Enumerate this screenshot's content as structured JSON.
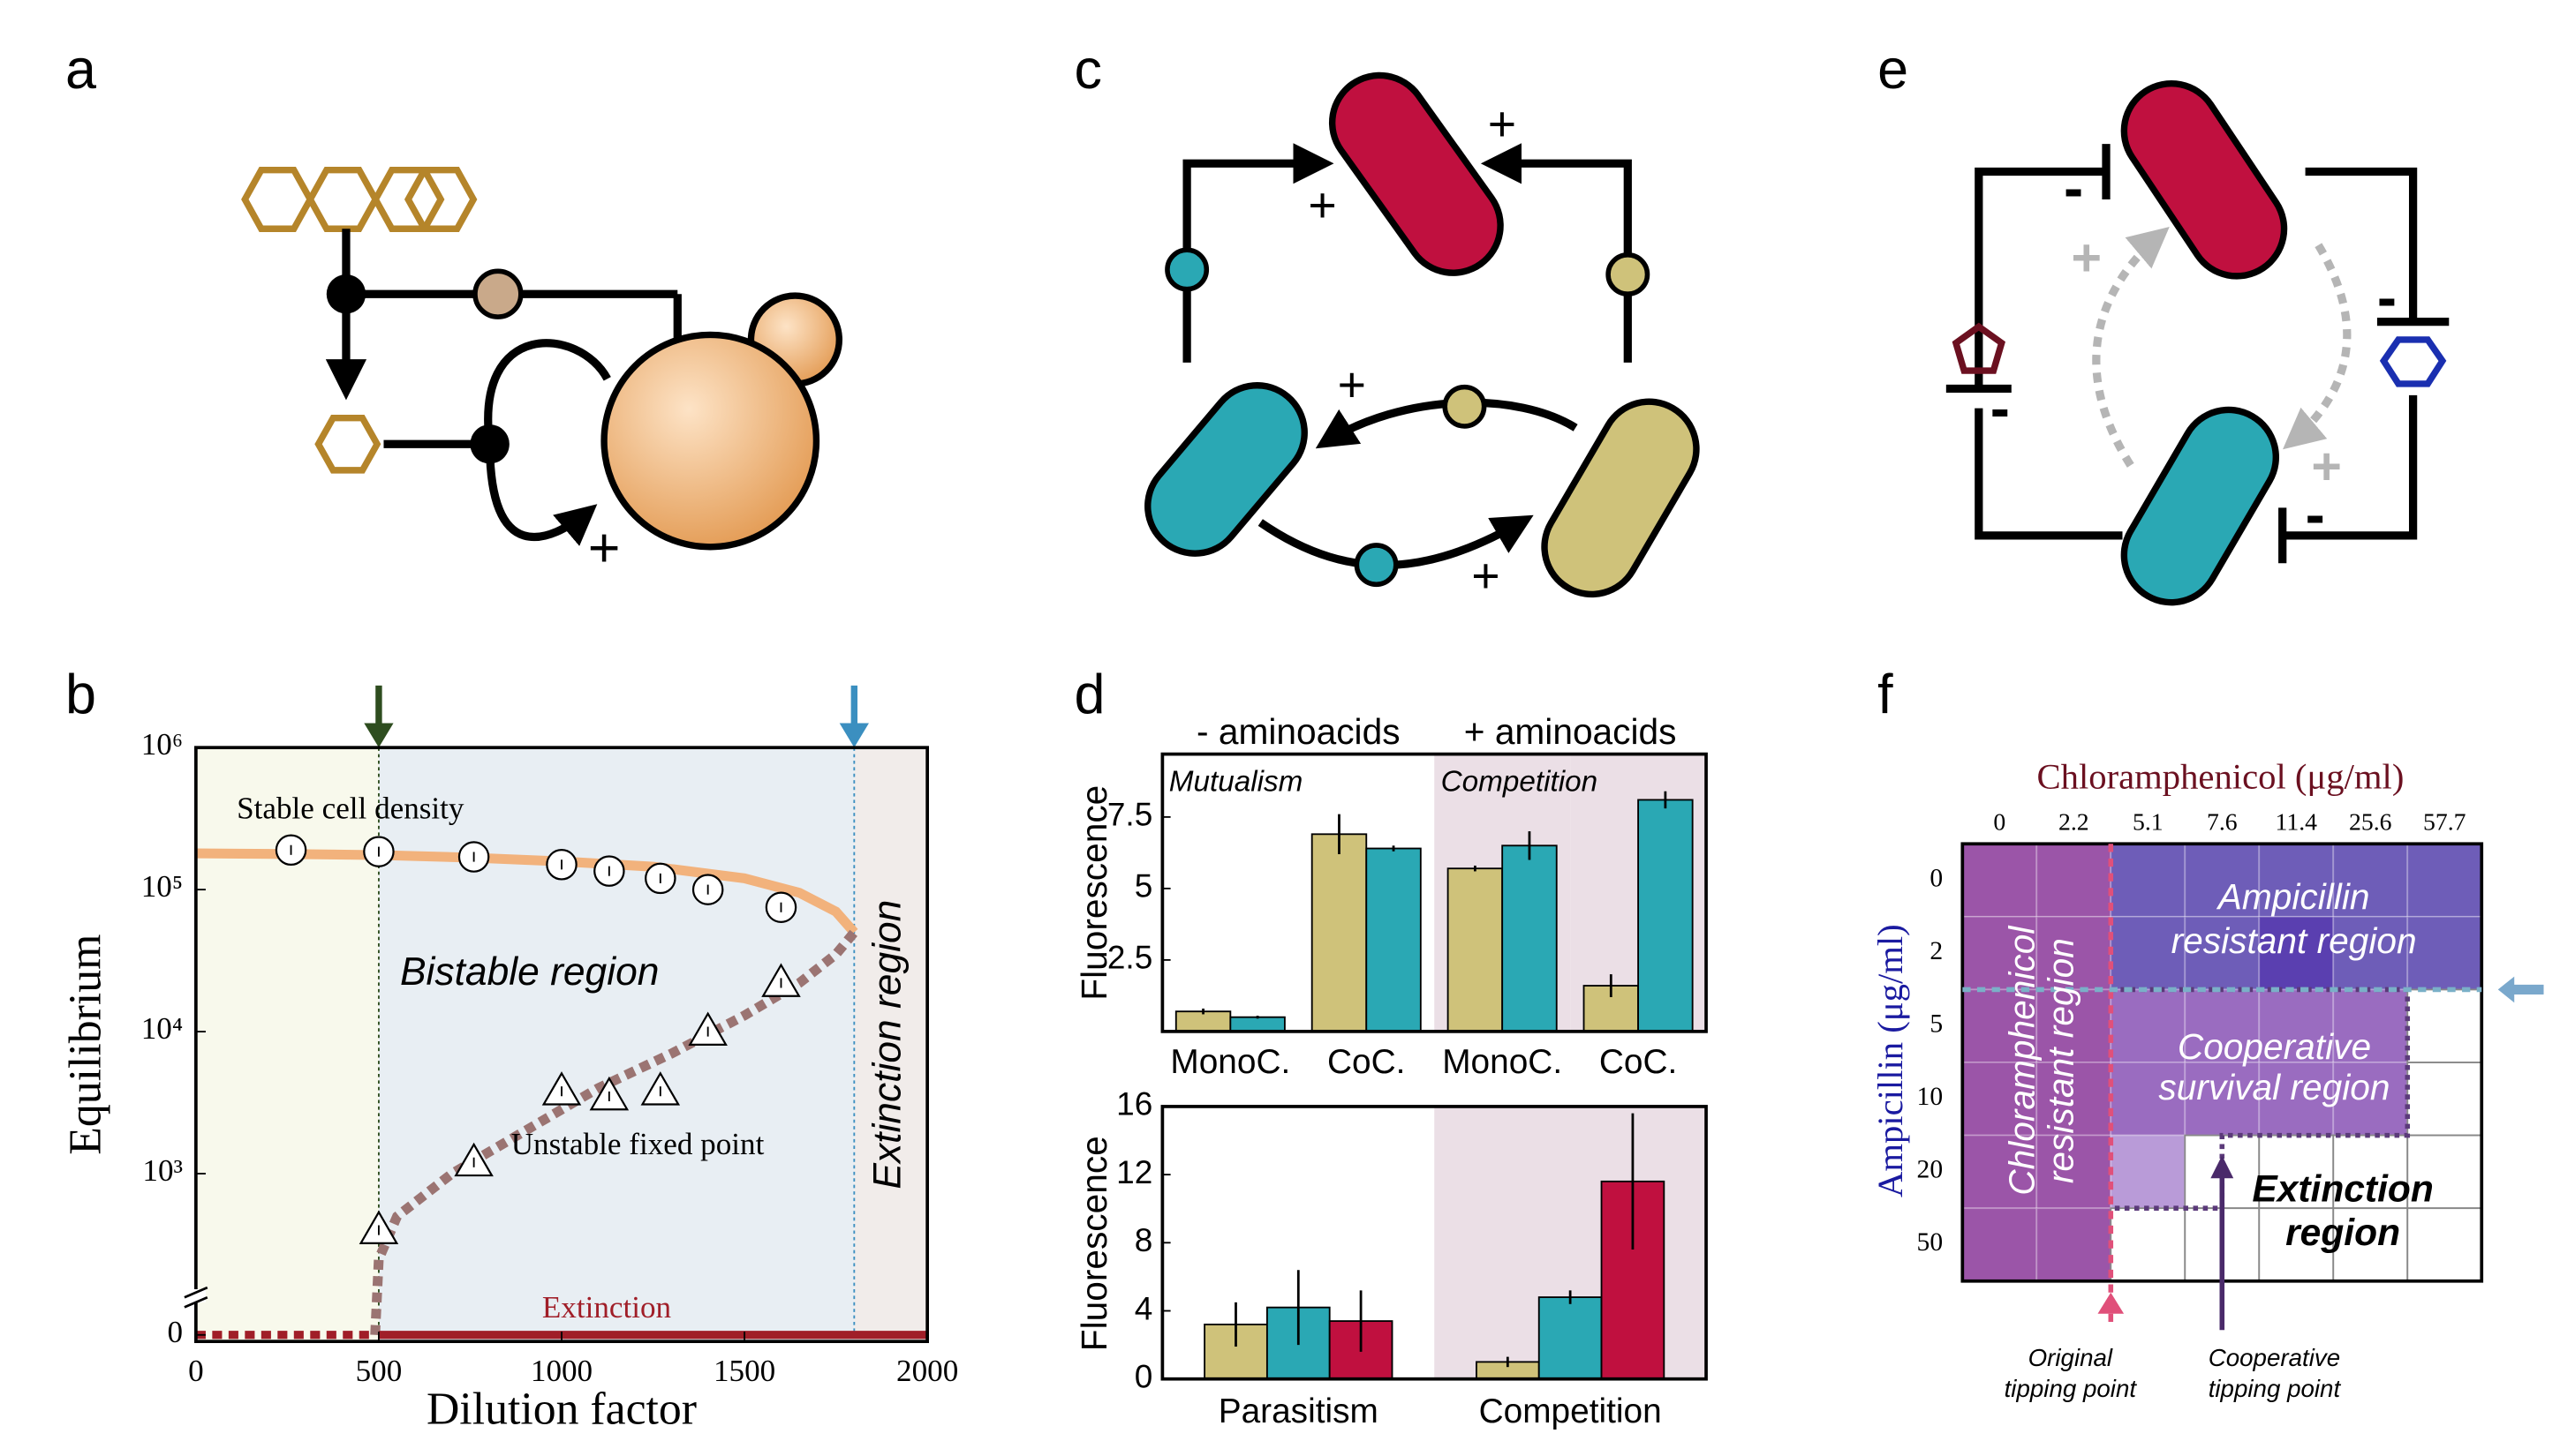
{
  "panel_labels": [
    "a",
    "b",
    "c",
    "d",
    "e",
    "f"
  ],
  "diagram_a": {
    "signs": [
      "+"
    ]
  },
  "diagram_c": {
    "signs": [
      "+",
      "+",
      "+",
      "+"
    ]
  },
  "diagram_e": {
    "signs": [
      "-",
      "-",
      "-",
      "-",
      "+",
      "+"
    ]
  },
  "chart_data": [
    {
      "type": "line",
      "xlabel": "Dilution factor",
      "ylabel": "Equilibrium",
      "xlim": [
        0,
        2000
      ],
      "xticks": [
        0,
        500,
        1000,
        1500,
        2000
      ],
      "ylim": [
        200,
        1000000
      ],
      "log_y": true,
      "axis_break": true,
      "yticks": [
        {
          "value": 0,
          "label": "0"
        },
        {
          "value": 1000,
          "label": "10³"
        },
        {
          "value": 10000,
          "label": "10⁴"
        },
        {
          "value": 100000,
          "label": "10⁵"
        },
        {
          "value": 1000000,
          "label": "10⁶"
        }
      ],
      "regions": [
        {
          "x": [
            0,
            500
          ],
          "color": "#f8f9ec"
        },
        {
          "x": [
            500,
            1800
          ],
          "color": "#e8eef3"
        },
        {
          "x": [
            1800,
            2000
          ],
          "color": "#f1ecea"
        }
      ],
      "markers": [
        {
          "x": 500,
          "color": "#2e4d1f"
        },
        {
          "x": 1800,
          "color": "#3b8fc0"
        }
      ],
      "series": [
        {
          "style": "solid",
          "color": "#f2b27c",
          "x": [
            0,
            250,
            500,
            750,
            1000,
            1250,
            1500,
            1650,
            1750,
            1800
          ],
          "values": [
            180000,
            178000,
            175000,
            168000,
            158000,
            145000,
            120000,
            95000,
            70000,
            50000
          ]
        },
        {
          "style": "dashed",
          "color": "#9b7472",
          "x": [
            490,
            500,
            550,
            700,
            900,
            1100,
            1300,
            1500,
            1650,
            1750,
            1800
          ],
          "values": [
            0,
            250,
            500,
            1000,
            2000,
            4000,
            7000,
            13000,
            22000,
            35000,
            50000
          ]
        },
        {
          "style": "circle",
          "color": "#000000",
          "x": [
            260,
            500,
            760,
            1000,
            1130,
            1270,
            1400,
            1600
          ],
          "values": [
            190000,
            185000,
            170000,
            150000,
            135000,
            120000,
            100000,
            75000
          ]
        },
        {
          "style": "triangle",
          "color": "#000000",
          "x": [
            500,
            760,
            1000,
            1130,
            1270,
            1400,
            1600
          ],
          "values": [
            400,
            1200,
            3800,
            3500,
            3800,
            10000,
            22000
          ]
        },
        {
          "style": "dashed",
          "color": "#a01e28",
          "x": [
            0,
            490
          ],
          "values": [
            0,
            0
          ]
        },
        {
          "style": "solid",
          "color": "#a01e28",
          "x": [
            500,
            2000
          ],
          "values": [
            0,
            0
          ]
        }
      ],
      "annotations": [
        "Stable cell density",
        "Bistable region",
        "Unstable fixed point",
        "Extinction",
        "Extinction region"
      ]
    },
    {
      "type": "bar",
      "ylabel": "Fluorescence",
      "categories": [
        "MonoC.",
        "CoC.",
        "MonoC.",
        "CoC."
      ],
      "group_labels": [
        "- aminoacids",
        "+ aminoacids"
      ],
      "section_labels": [
        "Mutualism",
        "Competition"
      ],
      "shaded_categories": [
        2,
        3
      ],
      "ylim": [
        0,
        9.7
      ],
      "yticks": [
        2.5,
        5,
        7.5
      ],
      "series": [
        {
          "color": "#cfc27a",
          "values": [
            0.7,
            6.9,
            5.7,
            1.6
          ],
          "errors": [
            0.1,
            0.7,
            0.1,
            0.4
          ]
        },
        {
          "color": "#2aa8b4",
          "values": [
            0.5,
            6.4,
            6.5,
            8.1
          ],
          "errors": [
            0.05,
            0.1,
            0.5,
            0.3
          ]
        }
      ]
    },
    {
      "type": "bar",
      "ylabel": "Fluorescence",
      "categories": [
        "Parasitism",
        "Competition"
      ],
      "shaded_categories": [
        1
      ],
      "ylim": [
        0,
        16
      ],
      "yticks": [
        0,
        4,
        8,
        12,
        16
      ],
      "series": [
        {
          "color": "#cfc27a",
          "values": [
            3.2,
            1.0
          ],
          "errors": [
            1.3,
            0.3
          ]
        },
        {
          "color": "#2aa8b4",
          "values": [
            4.2,
            4.8
          ],
          "errors": [
            2.2,
            0.4
          ]
        },
        {
          "color": "#c0103f",
          "values": [
            3.4,
            11.6
          ],
          "errors": [
            1.8,
            4.0
          ]
        }
      ]
    }
  ],
  "panel_f": {
    "x_title": "Chloramphenicol (μg/ml)",
    "y_title": "Ampicillin (μg/ml)",
    "columns": [
      "0",
      "2.2",
      "5.1",
      "7.6",
      "11.4",
      "25.6",
      "57.7"
    ],
    "rows": [
      "0",
      "2",
      "5",
      "10",
      "20",
      "50"
    ],
    "regions": [
      [
        "Chloramphenicol",
        "resistant region"
      ],
      [
        "Ampicillin",
        "resistant region"
      ],
      [
        "Cooperative",
        "survival region"
      ],
      [
        "Extinction",
        "region"
      ]
    ],
    "annotations": [
      [
        "Original",
        "tipping point"
      ],
      [
        "Cooperative",
        "tipping point"
      ]
    ]
  }
}
